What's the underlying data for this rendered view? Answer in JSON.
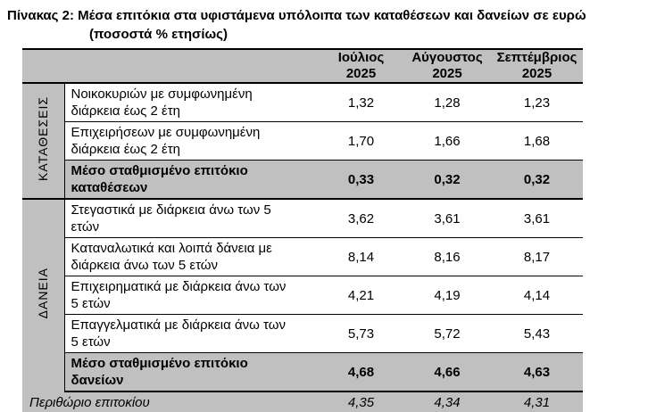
{
  "title": {
    "line1": "Πίνακας 2: Μέσα επιτόκια στα υφιστάμενα υπόλοιπα των καταθέσεων και δανείων σε ευρώ",
    "line2": "(ποσοστά % ετησίως)"
  },
  "colors": {
    "header_bg": "#c0c0c0",
    "summary_row_bg": "#c0c0c0",
    "border": "#000000"
  },
  "table": {
    "columns": [
      {
        "month": "Ιούλιος",
        "year": "2025"
      },
      {
        "month": "Αύγουστος",
        "year": "2025"
      },
      {
        "month": "Σεπτέμβριος",
        "year": "2025"
      }
    ],
    "sections": [
      {
        "label": "ΚΑΤΑΘΕΣΕΙΣ",
        "rows": [
          {
            "line1": "Νοικοκυριών με συμφωνημένη",
            "line2": "διάρκεια έως 2 έτη",
            "values": [
              "1,32",
              "1,28",
              "1,23"
            ]
          },
          {
            "line1": "Επιχειρήσεων με συμφωνημένη",
            "line2": "διάρκεια έως 2 έτη",
            "values": [
              "1,70",
              "1,66",
              "1,68"
            ]
          },
          {
            "line1": "Μέσο σταθμισμένο επιτόκιο",
            "line2": "καταθέσεων",
            "values": [
              "0,33",
              "0,32",
              "0,32"
            ]
          }
        ]
      },
      {
        "label": "ΔΑΝΕΙΑ",
        "rows": [
          {
            "line1": "Στεγαστικά με διάρκεια άνω των 5",
            "line2": "ετών",
            "values": [
              "3,62",
              "3,61",
              "3,61"
            ]
          },
          {
            "line1": "Καταναλωτικά και λοιπά δάνεια με",
            "line2": "διάρκεια άνω των 5 ετών",
            "values": [
              "8,14",
              "8,16",
              "8,17"
            ]
          },
          {
            "line1": "Επιχειρηματικά με διάρκεια άνω των",
            "line2": "5 ετών",
            "values": [
              "4,21",
              "4,19",
              "4,14"
            ]
          },
          {
            "line1": "Επαγγελματικά με διάρκεια άνω των",
            "line2": "5 ετών",
            "values": [
              "5,73",
              "5,72",
              "5,43"
            ]
          },
          {
            "line1": "Μέσο σταθμισμένο επιτόκιο",
            "line2": "δανείων",
            "values": [
              "4,68",
              "4,66",
              "4,63"
            ]
          }
        ]
      }
    ],
    "footer": {
      "label": "Περιθώριο επιτοκίου",
      "values": [
        "4,35",
        "4,34",
        "4,31"
      ]
    }
  }
}
